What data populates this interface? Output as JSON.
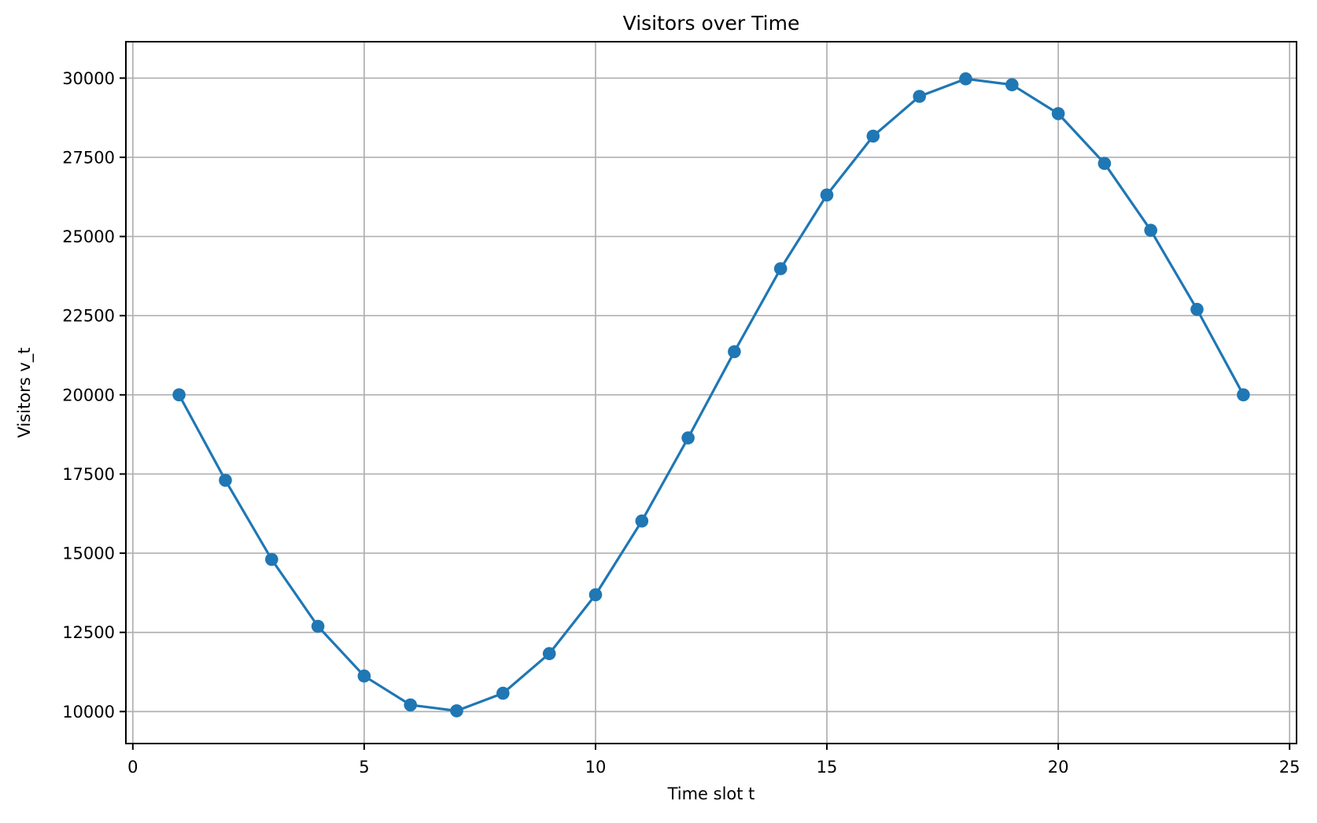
{
  "figure": {
    "background": "#ffffff"
  },
  "chart_data": {
    "type": "line",
    "title": "Visitors over Time",
    "xlabel": "Time slot t",
    "ylabel": "Visitors v_t",
    "x": [
      1,
      2,
      3,
      4,
      5,
      6,
      7,
      8,
      9,
      10,
      11,
      12,
      13,
      14,
      15,
      16,
      17,
      18,
      19,
      20,
      21,
      22,
      23,
      24
    ],
    "y": [
      20000,
      17302,
      14804,
      12692,
      11121,
      10209,
      10023,
      10577,
      11830,
      13689,
      16016,
      18638,
      21362,
      23984,
      26311,
      28170,
      29423,
      29977,
      29791,
      28879,
      27308,
      25196,
      22698,
      20000
    ],
    "series_name": "Visitors v_t",
    "xlim": [
      -0.15,
      25.15
    ],
    "ylim": [
      8990,
      31150
    ],
    "xticks": [
      0,
      5,
      10,
      15,
      20,
      25
    ],
    "yticks": [
      10000,
      12500,
      15000,
      17500,
      20000,
      22500,
      25000,
      27500,
      30000
    ],
    "grid": true,
    "legend": false,
    "line_color": "#1f77b4",
    "marker": "o",
    "grid_color": "#b0b0b0",
    "spine_color": "#000000",
    "text_color": "#000000"
  }
}
